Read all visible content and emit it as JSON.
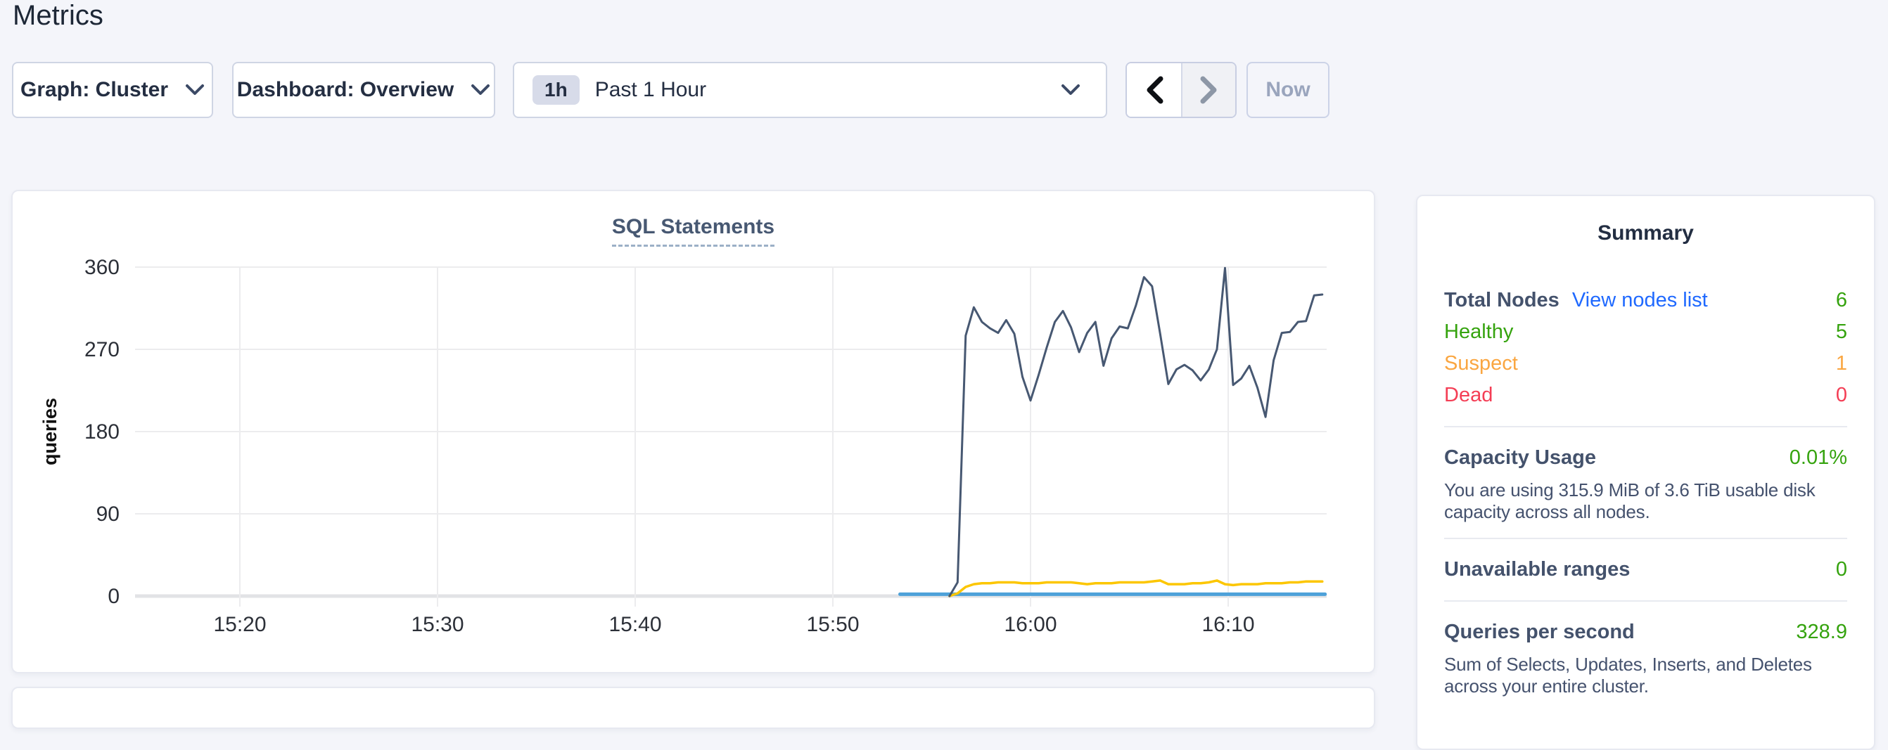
{
  "page": {
    "title": "Metrics",
    "background": "#f4f5fa"
  },
  "toolbar": {
    "graph_dropdown": "Graph: Cluster",
    "dashboard_dropdown": "Dashboard: Overview",
    "time_badge": "1h",
    "time_label": "Past 1 Hour",
    "now_label": "Now"
  },
  "chart_data": {
    "type": "line",
    "title": "SQL Statements",
    "ylabel": "queries",
    "ylim": [
      0,
      360
    ],
    "yticks": [
      0,
      90,
      180,
      270,
      360
    ],
    "xticks": [
      {
        "minute": 20,
        "label": "15:20"
      },
      {
        "minute": 30,
        "label": "15:30"
      },
      {
        "minute": 40,
        "label": "15:40"
      },
      {
        "minute": 50,
        "label": "15:50"
      },
      {
        "minute": 60,
        "label": "16:00"
      },
      {
        "minute": 70,
        "label": "16:10"
      }
    ],
    "x_unit": "minutes after 15:00",
    "x_domain_minutes": [
      14.7,
      75.0
    ],
    "grid": true,
    "legend": "none",
    "series": [
      {
        "name": "blue-flat-series",
        "color": "#4da1d9",
        "stroke_width": 5,
        "points": [
          [
            53.4,
            2
          ],
          [
            74.9,
            2
          ]
        ]
      },
      {
        "name": "yellow-series",
        "color": "#fcc600",
        "stroke_width": 3.5,
        "t_start": 55.9,
        "t_step": 0.41,
        "values": [
          0,
          3,
          10,
          13,
          14,
          14,
          15,
          15,
          15,
          14,
          14,
          14,
          15,
          15,
          15,
          15,
          14,
          13,
          14,
          14,
          14,
          15,
          15,
          15,
          15,
          16,
          17,
          13,
          13,
          13,
          14,
          14,
          15,
          17,
          13,
          12,
          13,
          13,
          13,
          14,
          14,
          14,
          15,
          15,
          16,
          16,
          16
        ]
      },
      {
        "name": "navy-series",
        "color": "#475872",
        "stroke_width": 3,
        "t_start": 55.9,
        "t_step": 0.41,
        "values": [
          0,
          15,
          285,
          316,
          300,
          293,
          288,
          302,
          287,
          240,
          214,
          242,
          272,
          300,
          312,
          294,
          267,
          288,
          300,
          252,
          282,
          295,
          293,
          318,
          349,
          339,
          287,
          232,
          248,
          253,
          247,
          236,
          248,
          270,
          359,
          231,
          238,
          252,
          228,
          196,
          258,
          288,
          289,
          300,
          301,
          329,
          330
        ]
      }
    ]
  },
  "summary": {
    "heading": "Summary",
    "total_nodes": {
      "label": "Total Nodes",
      "link": "View nodes list",
      "link_color": "#1f69ff",
      "value": "6",
      "value_color": "#35a30e"
    },
    "health_rows": [
      {
        "label": "Healthy",
        "value": "5",
        "color": "#35a30e"
      },
      {
        "label": "Suspect",
        "value": "1",
        "color": "#faa641"
      },
      {
        "label": "Dead",
        "value": "0",
        "color": "#f43e55"
      }
    ],
    "capacity": {
      "label": "Capacity Usage",
      "value": "0.01%",
      "value_color": "#35a30e",
      "description": "You are using 315.9 MiB of 3.6 TiB usable disk capacity across all nodes."
    },
    "unavailable_ranges": {
      "label": "Unavailable ranges",
      "value": "0",
      "value_color": "#35a30e"
    },
    "queries_per_second": {
      "label": "Queries per second",
      "value": "328.9",
      "value_color": "#35a30e",
      "description": "Sum of Selects, Updates, Inserts, and Deletes across your entire cluster."
    }
  }
}
